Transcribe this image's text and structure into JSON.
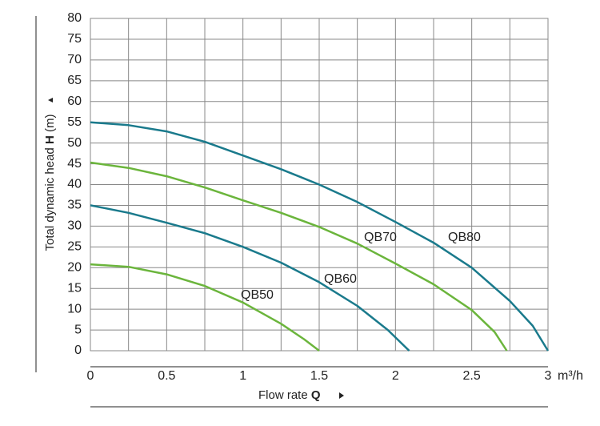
{
  "chart_data": {
    "type": "line",
    "x_label": {
      "text": "Flow rate",
      "symbol": "Q"
    },
    "y_label": {
      "text": "Total dynamic head",
      "symbol": "H",
      "unit": "(m)"
    },
    "x_unit": "m³/h",
    "xlim": [
      0,
      3
    ],
    "ylim": [
      0,
      80
    ],
    "xticks": [
      0,
      0.5,
      1,
      1.5,
      2,
      2.5,
      3
    ],
    "yticks": [
      0,
      5,
      10,
      15,
      20,
      25,
      30,
      35,
      40,
      45,
      50,
      55,
      60,
      65,
      70,
      75,
      80
    ],
    "xgrid": [
      0.25,
      0.75,
      1.25,
      1.75,
      2.25,
      2.75
    ],
    "grid": true,
    "series": [
      {
        "name": "QB80",
        "color": "#1a7a8c",
        "x": [
          0,
          0.25,
          0.5,
          0.75,
          1,
          1.25,
          1.5,
          1.75,
          2,
          2.25,
          2.5,
          2.75,
          2.9,
          3
        ],
        "values": [
          55,
          54.3,
          52.8,
          50.3,
          47,
          43.7,
          40,
          35.8,
          31,
          26,
          20,
          12,
          6,
          0
        ]
      },
      {
        "name": "QB70",
        "color": "#6bb53c",
        "x": [
          0,
          0.25,
          0.5,
          0.75,
          1,
          1.25,
          1.5,
          1.75,
          2,
          2.25,
          2.5,
          2.65,
          2.73
        ],
        "values": [
          45.3,
          44,
          42,
          39.3,
          36.2,
          33.2,
          29.8,
          25.8,
          21,
          16,
          9.8,
          4.5,
          0
        ]
      },
      {
        "name": "QB60",
        "color": "#1a7a8c",
        "x": [
          0,
          0.25,
          0.5,
          0.75,
          1,
          1.25,
          1.5,
          1.75,
          1.95,
          2.09
        ],
        "values": [
          35,
          33.2,
          30.8,
          28.3,
          25,
          21.2,
          16.5,
          10.8,
          5,
          0
        ]
      },
      {
        "name": "QB50",
        "color": "#6bb53c",
        "x": [
          0,
          0.25,
          0.5,
          0.75,
          1,
          1.25,
          1.4,
          1.5
        ],
        "values": [
          20.8,
          20.2,
          18.4,
          15.6,
          11.6,
          6.5,
          2.8,
          0
        ]
      }
    ]
  }
}
